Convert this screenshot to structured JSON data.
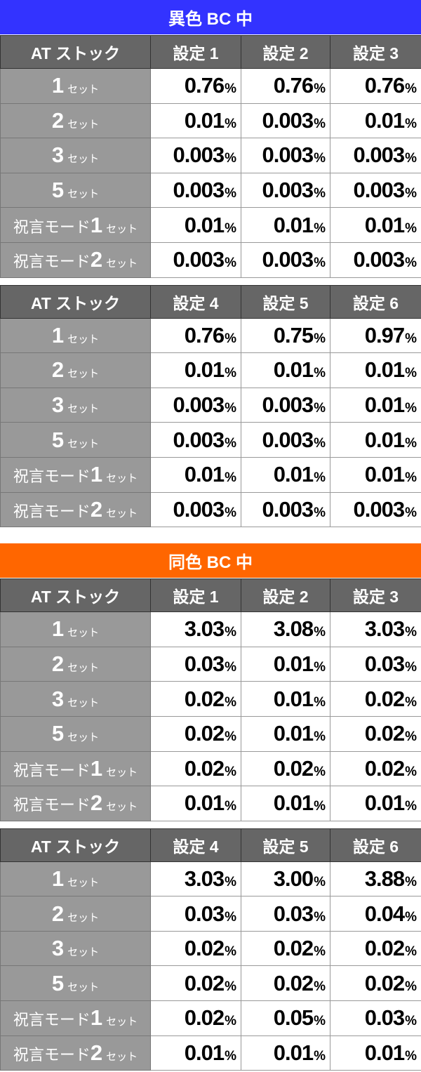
{
  "colors": {
    "section1": "#3333ff",
    "section2": "#ff6600",
    "header": "#666666",
    "label": "#999999"
  },
  "unit": "%",
  "sections": [
    {
      "title": "異色 BC 中",
      "tables": [
        {
          "headers": [
            "AT ストック",
            "設定 1",
            "設定 2",
            "設定 3"
          ],
          "rows": [
            {
              "label": {
                "prefix": "",
                "num": "1",
                "suffix": "セット"
              },
              "values": [
                "0.76",
                "0.76",
                "0.76"
              ]
            },
            {
              "label": {
                "prefix": "",
                "num": "2",
                "suffix": "セット"
              },
              "values": [
                "0.01",
                "0.003",
                "0.01"
              ]
            },
            {
              "label": {
                "prefix": "",
                "num": "3",
                "suffix": "セット"
              },
              "values": [
                "0.003",
                "0.003",
                "0.003"
              ]
            },
            {
              "label": {
                "prefix": "",
                "num": "5",
                "suffix": "セット"
              },
              "values": [
                "0.003",
                "0.003",
                "0.003"
              ]
            },
            {
              "label": {
                "prefix": "祝言モード",
                "num": "1",
                "suffix": "セット"
              },
              "values": [
                "0.01",
                "0.01",
                "0.01"
              ]
            },
            {
              "label": {
                "prefix": "祝言モード",
                "num": "2",
                "suffix": "セット"
              },
              "values": [
                "0.003",
                "0.003",
                "0.003"
              ]
            }
          ]
        },
        {
          "headers": [
            "AT ストック",
            "設定 4",
            "設定 5",
            "設定 6"
          ],
          "rows": [
            {
              "label": {
                "prefix": "",
                "num": "1",
                "suffix": "セット"
              },
              "values": [
                "0.76",
                "0.75",
                "0.97"
              ]
            },
            {
              "label": {
                "prefix": "",
                "num": "2",
                "suffix": "セット"
              },
              "values": [
                "0.01",
                "0.01",
                "0.01"
              ]
            },
            {
              "label": {
                "prefix": "",
                "num": "3",
                "suffix": "セット"
              },
              "values": [
                "0.003",
                "0.003",
                "0.01"
              ]
            },
            {
              "label": {
                "prefix": "",
                "num": "5",
                "suffix": "セット"
              },
              "values": [
                "0.003",
                "0.003",
                "0.01"
              ]
            },
            {
              "label": {
                "prefix": "祝言モード",
                "num": "1",
                "suffix": "セット"
              },
              "values": [
                "0.01",
                "0.01",
                "0.01"
              ]
            },
            {
              "label": {
                "prefix": "祝言モード",
                "num": "2",
                "suffix": "セット"
              },
              "values": [
                "0.003",
                "0.003",
                "0.003"
              ]
            }
          ]
        }
      ]
    },
    {
      "title": "同色 BC 中",
      "tables": [
        {
          "headers": [
            "AT ストック",
            "設定 1",
            "設定 2",
            "設定 3"
          ],
          "rows": [
            {
              "label": {
                "prefix": "",
                "num": "1",
                "suffix": "セット"
              },
              "values": [
                "3.03",
                "3.08",
                "3.03"
              ]
            },
            {
              "label": {
                "prefix": "",
                "num": "2",
                "suffix": "セット"
              },
              "values": [
                "0.03",
                "0.01",
                "0.03"
              ]
            },
            {
              "label": {
                "prefix": "",
                "num": "3",
                "suffix": "セット"
              },
              "values": [
                "0.02",
                "0.01",
                "0.02"
              ]
            },
            {
              "label": {
                "prefix": "",
                "num": "5",
                "suffix": "セット"
              },
              "values": [
                "0.02",
                "0.01",
                "0.02"
              ]
            },
            {
              "label": {
                "prefix": "祝言モード",
                "num": "1",
                "suffix": "セット"
              },
              "values": [
                "0.02",
                "0.02",
                "0.02"
              ]
            },
            {
              "label": {
                "prefix": "祝言モード",
                "num": "2",
                "suffix": "セット"
              },
              "values": [
                "0.01",
                "0.01",
                "0.01"
              ]
            }
          ]
        },
        {
          "headers": [
            "AT ストック",
            "設定 4",
            "設定 5",
            "設定 6"
          ],
          "rows": [
            {
              "label": {
                "prefix": "",
                "num": "1",
                "suffix": "セット"
              },
              "values": [
                "3.03",
                "3.00",
                "3.88"
              ]
            },
            {
              "label": {
                "prefix": "",
                "num": "2",
                "suffix": "セット"
              },
              "values": [
                "0.03",
                "0.03",
                "0.04"
              ]
            },
            {
              "label": {
                "prefix": "",
                "num": "3",
                "suffix": "セット"
              },
              "values": [
                "0.02",
                "0.02",
                "0.02"
              ]
            },
            {
              "label": {
                "prefix": "",
                "num": "5",
                "suffix": "セット"
              },
              "values": [
                "0.02",
                "0.02",
                "0.02"
              ]
            },
            {
              "label": {
                "prefix": "祝言モード",
                "num": "1",
                "suffix": "セット"
              },
              "values": [
                "0.02",
                "0.05",
                "0.03"
              ]
            },
            {
              "label": {
                "prefix": "祝言モード",
                "num": "2",
                "suffix": "セット"
              },
              "values": [
                "0.01",
                "0.01",
                "0.01"
              ]
            }
          ]
        }
      ]
    }
  ]
}
